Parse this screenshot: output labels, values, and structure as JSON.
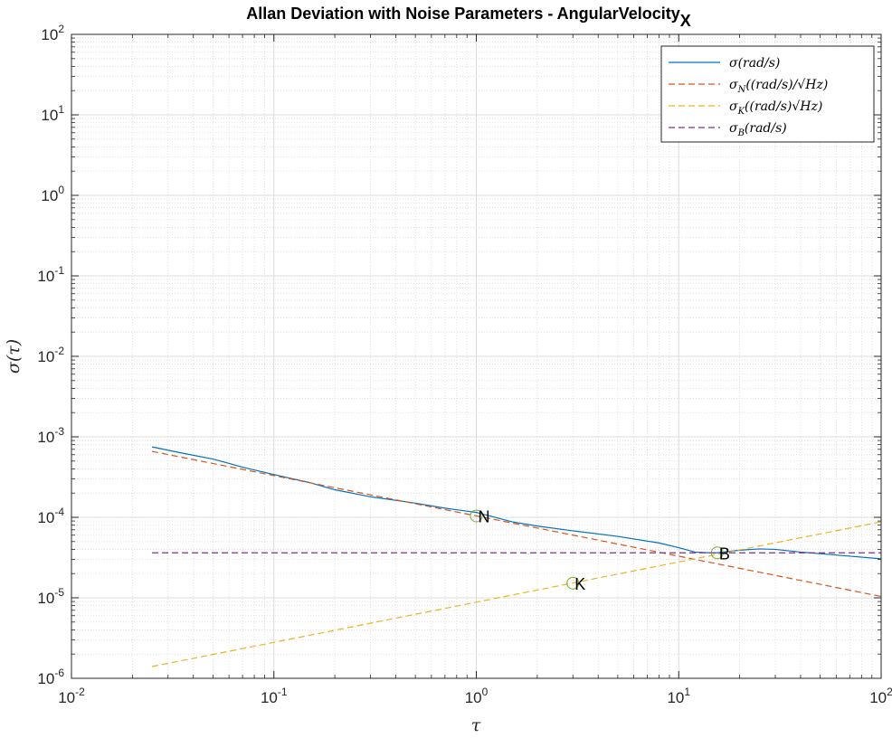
{
  "chart_data": {
    "type": "line",
    "title": "Allan Deviation with Noise Parameters - AngularVelocity",
    "title_subscript": "X",
    "xlabel": "τ",
    "ylabel": "σ(τ)",
    "xscale": "log",
    "yscale": "log",
    "xlim": [
      0.01,
      100
    ],
    "ylim": [
      1e-06,
      100
    ],
    "grid": true,
    "minor_grid": true,
    "legend_position": "top-right",
    "x_ticks": [
      {
        "base": "10",
        "exp": "-2",
        "value": 0.01
      },
      {
        "base": "10",
        "exp": "-1",
        "value": 0.1
      },
      {
        "base": "10",
        "exp": "0",
        "value": 1
      },
      {
        "base": "10",
        "exp": "1",
        "value": 10
      },
      {
        "base": "10",
        "exp": "2",
        "value": 100
      }
    ],
    "y_ticks": [
      {
        "base": "10",
        "exp": "-6",
        "value": 1e-06
      },
      {
        "base": "10",
        "exp": "-5",
        "value": 1e-05
      },
      {
        "base": "10",
        "exp": "-4",
        "value": 0.0001
      },
      {
        "base": "10",
        "exp": "-3",
        "value": 0.001
      },
      {
        "base": "10",
        "exp": "-2",
        "value": 0.01
      },
      {
        "base": "10",
        "exp": "-1",
        "value": 0.1
      },
      {
        "base": "10",
        "exp": "0",
        "value": 1
      },
      {
        "base": "10",
        "exp": "1",
        "value": 10
      },
      {
        "base": "10",
        "exp": "2",
        "value": 100
      }
    ],
    "series": [
      {
        "name": "σ(rad/s)",
        "legend_main": "σ",
        "legend_sub": "",
        "legend_rest": "(rad/s)",
        "color": "#0072BD",
        "dash": "solid",
        "points": [
          [
            0.025,
            0.00075
          ],
          [
            0.035,
            0.00063
          ],
          [
            0.05,
            0.00053
          ],
          [
            0.07,
            0.00042
          ],
          [
            0.1,
            0.00034
          ],
          [
            0.15,
            0.00027
          ],
          [
            0.2,
            0.00022
          ],
          [
            0.3,
            0.00018
          ],
          [
            0.5,
            0.00015
          ],
          [
            0.7,
            0.00013
          ],
          [
            1.0,
            0.000115
          ],
          [
            1.5,
            8.8e-05
          ],
          [
            2.0,
            7.8e-05
          ],
          [
            3.0,
            6.8e-05
          ],
          [
            5.0,
            5.8e-05
          ],
          [
            8.0,
            4.8e-05
          ],
          [
            10.0,
            4.2e-05
          ],
          [
            12.0,
            3.7e-05
          ],
          [
            15.0,
            3.6e-05
          ],
          [
            20.0,
            3.9e-05
          ],
          [
            25.0,
            4.05e-05
          ],
          [
            30.0,
            4e-05
          ],
          [
            40.0,
            3.7e-05
          ],
          [
            60.0,
            3.4e-05
          ],
          [
            100.0,
            3.05e-05
          ]
        ]
      },
      {
        "name": "σN((rad/s)/√Hz)",
        "legend_main": "σ",
        "legend_sub": "N",
        "legend_rest": "((rad/s)/√Hz)",
        "color": "#D95319",
        "dash": "dashed",
        "points": [
          [
            0.025,
            0.00066
          ],
          [
            100.0,
            1.04e-05
          ]
        ]
      },
      {
        "name": "σK((rad/s)√Hz)",
        "legend_main": "σ",
        "legend_sub": "K",
        "legend_rest": "((rad/s)√Hz)",
        "color": "#EDB120",
        "dash": "dashed",
        "points": [
          [
            0.025,
            1.4e-06
          ],
          [
            100.0,
            8.8e-05
          ]
        ]
      },
      {
        "name": "σB(rad/s)",
        "legend_main": "σ",
        "legend_sub": "B",
        "legend_rest": "(rad/s)",
        "color": "#7E2F8E",
        "dash": "dashed",
        "points": [
          [
            0.025,
            3.62e-05
          ],
          [
            100.0,
            3.62e-05
          ]
        ]
      }
    ],
    "annotations": [
      {
        "label": "N",
        "x": 1.0,
        "y": 0.000104
      },
      {
        "label": "K",
        "x": 3.0,
        "y": 1.52e-05
      },
      {
        "label": "B",
        "x": 15.5,
        "y": 3.62e-05
      }
    ]
  }
}
